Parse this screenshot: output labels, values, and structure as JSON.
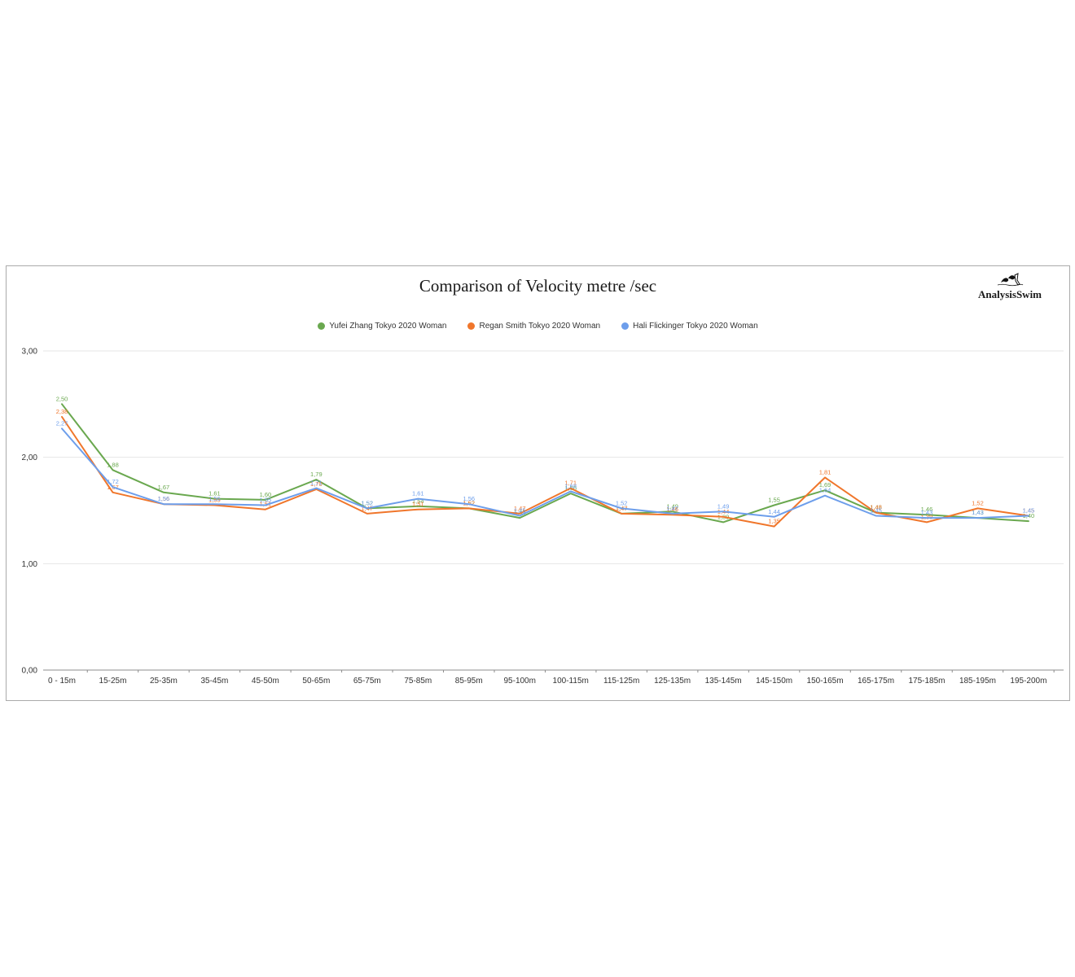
{
  "card": {
    "title": "Comparison of Velocity metre /sec",
    "logo_text": "AnalysisSwim"
  },
  "chart_data": {
    "type": "line",
    "title": "Comparison of Velocity metre /sec",
    "xlabel": "",
    "ylabel": "",
    "ylim": [
      0,
      3
    ],
    "yticks": [
      0,
      1,
      2,
      3
    ],
    "ytick_labels": [
      "0,00",
      "1,00",
      "2,00",
      "3,00"
    ],
    "grid": true,
    "legend_position": "top",
    "decimal_separator": ",",
    "categories": [
      "0 - 15m",
      "15-25m",
      "25-35m",
      "35-45m",
      "45-50m",
      "50-65m",
      "65-75m",
      "75-85m",
      "85-95m",
      "95-100m",
      "100-115m",
      "115-125m",
      "125-135m",
      "135-145m",
      "145-150m",
      "150-165m",
      "165-175m",
      "175-185m",
      "185-195m",
      "195-200m"
    ],
    "series": [
      {
        "name": "Yufei Zhang Tokyo 2020 Woman",
        "color": "#6aa84f",
        "values": [
          2.5,
          1.88,
          1.67,
          1.61,
          1.6,
          1.79,
          1.52,
          1.54,
          1.52,
          1.43,
          1.66,
          1.47,
          1.49,
          1.39,
          1.55,
          1.69,
          1.48,
          1.46,
          1.43,
          1.4
        ]
      },
      {
        "name": "Regan Smith Tokyo 2020 Woman",
        "color": "#f0762b",
        "values": [
          2.38,
          1.67,
          1.56,
          1.55,
          1.51,
          1.7,
          1.47,
          1.51,
          1.52,
          1.47,
          1.71,
          1.47,
          1.46,
          1.44,
          1.35,
          1.81,
          1.48,
          1.39,
          1.52,
          1.45
        ]
      },
      {
        "name": "Hali Flickinger Tokyo 2020 Woman",
        "color": "#6d9eeb",
        "values": [
          2.27,
          1.72,
          1.56,
          1.56,
          1.55,
          1.71,
          1.52,
          1.61,
          1.56,
          1.45,
          1.68,
          1.52,
          1.47,
          1.49,
          1.44,
          1.64,
          1.45,
          1.43,
          1.43,
          1.45
        ]
      }
    ],
    "colors": {
      "grid_line": "#e6e6e6",
      "axis_line": "#8c8c8c",
      "tick_text": "#333333"
    }
  }
}
